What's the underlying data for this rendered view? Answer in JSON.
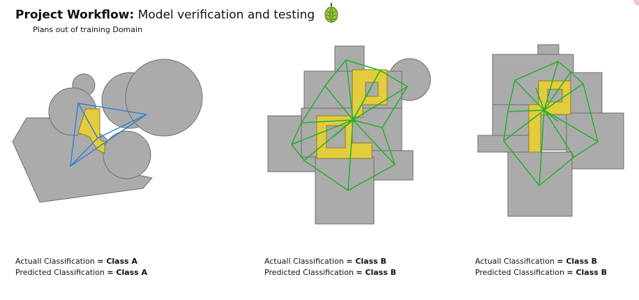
{
  "header": {
    "title_bold": "Project Workflow:",
    "title_rest": " Model verification and testing",
    "subtitle": "Plans out of training Domain",
    "logo_icon": "hop-cone-icon"
  },
  "colors": {
    "building_fill": "#ababab",
    "building_stroke": "#6e6e6e",
    "zone_fill": "#e3cd3c",
    "class_a_graph": "#2f7dd6",
    "class_b_graph": "#22b12a"
  },
  "examples": [
    {
      "actual_label": "Actuall Classification ",
      "actual_eq": "= ",
      "actual_value": "Class A",
      "predicted_label": "Predicted Classification ",
      "predicted_eq": "= ",
      "predicted_value": "Class A"
    },
    {
      "actual_label": "Actuall Classification ",
      "actual_eq": "= ",
      "actual_value": "Class B",
      "predicted_label": "Predicted Classification ",
      "predicted_eq": "= ",
      "predicted_value": "Class B"
    },
    {
      "actual_label": "Actuall Classification ",
      "actual_eq": "= ",
      "actual_value": "Class B",
      "predicted_label": "Predicted Classification ",
      "predicted_eq": "= ",
      "predicted_value": "Class B"
    }
  ]
}
